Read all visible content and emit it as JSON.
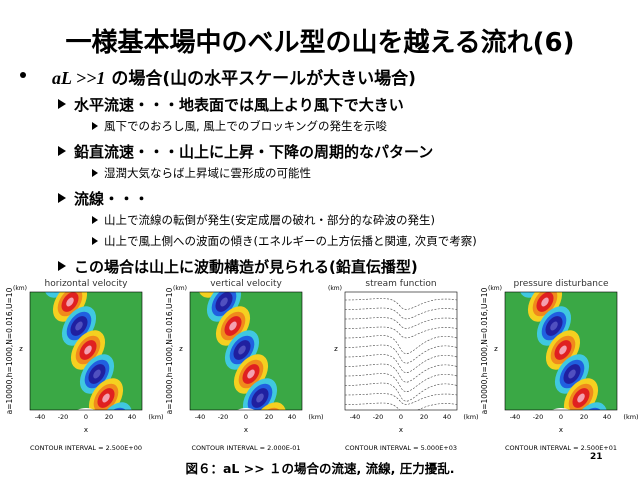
{
  "slide": {
    "title": "一様基本場中のベル型の山を越える流れ(6)",
    "bullet": {
      "math": "aL >>1",
      "text": "の場合(山の水平スケールが大きい場合)"
    },
    "items": [
      {
        "heading": "水平流速・・・地表面では風上より風下で大きい",
        "subitems": [
          "風下でのおろし風, 風上でのブロッキングの発生を示唆"
        ]
      },
      {
        "heading": "鉛直流速・・・山上に上昇・下降の周期的なパターン",
        "subitems": [
          "湿潤大気ならば上昇域に雲形成の可能性"
        ]
      },
      {
        "heading": "流線・・・",
        "subitems": [
          "山上で流線の転倒が発生(安定成層の破れ・部分的な砕波の発生)",
          "山上で風上側への波面の傾き(エネルギーの上方伝播と関連, 次頁で考察)"
        ]
      },
      {
        "heading": "この場合は山上に波動構造が見られる(鉛直伝播型)",
        "subitems": []
      }
    ],
    "figure": {
      "panels": [
        {
          "title": "horizontal velocity",
          "params": "a=10000,h=1000,N=0.016,U=10",
          "contour_interval": "CONTOUR INTERVAL = 2.500E+00"
        },
        {
          "title": "vertical velocity",
          "params": "a=10000,h=1000,N=0.016,U=10",
          "contour_interval": "CONTOUR INTERVAL = 2.000E-01"
        },
        {
          "title": "stream function",
          "contour_interval": "CONTOUR INTERVAL = 5.000E+03"
        },
        {
          "title": "pressure disturbance",
          "params": "a=10000,h=1000,N=0.016,U=10",
          "contour_interval": "CONTOUR INTERVAL = 2.500E+01"
        }
      ],
      "x_ticks": [
        "-40",
        "-20",
        "0",
        "20",
        "40"
      ],
      "x_label": "x",
      "x_unit": "(km)",
      "z_label": "z",
      "z_unit": "(km)"
    },
    "caption": "図６：aL >> １の場合の流速, 流線, 圧力擾乱.",
    "page_number": "21"
  }
}
